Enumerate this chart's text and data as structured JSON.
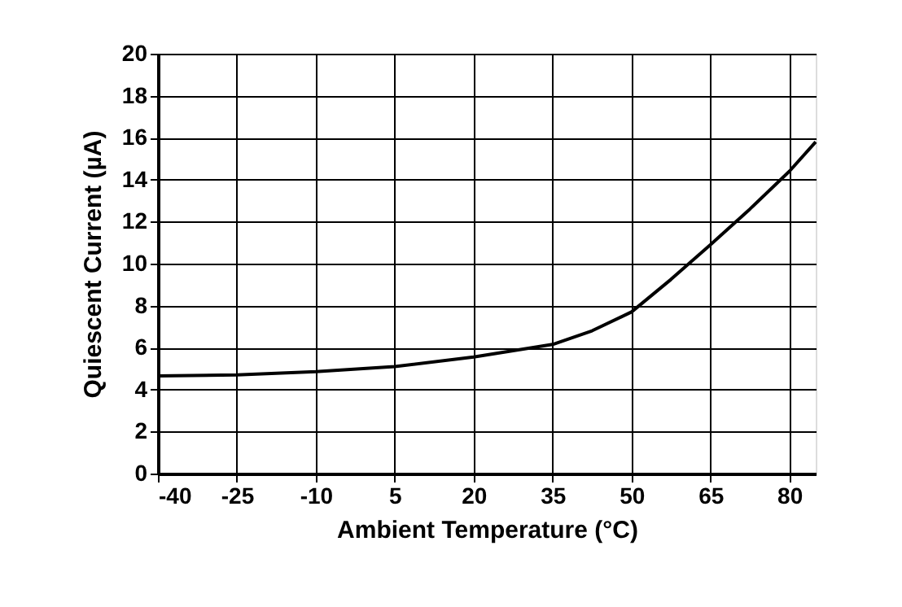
{
  "chart_data": {
    "type": "line",
    "xlabel": "Ambient Temperature (°C)",
    "ylabel": "Quiescent Current (µA)",
    "x": [
      -40,
      -25,
      -10,
      5,
      20,
      35,
      42.5,
      50,
      57.5,
      65,
      72.5,
      80,
      85
    ],
    "series": [
      {
        "color": "#000000",
        "values": [
          4.65,
          4.7,
          4.85,
          5.1,
          5.55,
          6.15,
          6.8,
          7.7,
          9.25,
          10.9,
          12.6,
          14.4,
          15.8
        ]
      }
    ],
    "xlim": [
      -40,
      85
    ],
    "xticks": [
      -40,
      -25,
      -10,
      5,
      20,
      35,
      50,
      65,
      80
    ],
    "ylim": [
      0,
      20
    ],
    "yticks": [
      0,
      2,
      4,
      6,
      8,
      10,
      12,
      14,
      16,
      18,
      20
    ],
    "grid": true,
    "marker": "none",
    "line_style": "solid"
  }
}
